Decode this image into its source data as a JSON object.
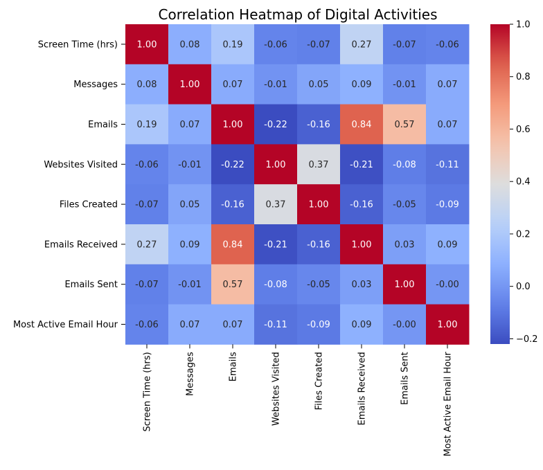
{
  "chart_data": {
    "type": "heatmap",
    "title": "Correlation Heatmap of Digital Activities",
    "x_labels": [
      "Screen Time (hrs)",
      "Messages",
      "Emails",
      "Websites Visited",
      "Files Created",
      "Emails Received",
      "Emails Sent",
      "Most Active Email Hour"
    ],
    "y_labels": [
      "Screen Time (hrs)",
      "Messages",
      "Emails",
      "Websites Visited",
      "Files Created",
      "Emails Received",
      "Emails Sent",
      "Most Active Email Hour"
    ],
    "values": [
      [
        1.0,
        0.08,
        0.19,
        -0.06,
        -0.07,
        0.27,
        -0.07,
        -0.06
      ],
      [
        0.08,
        1.0,
        0.07,
        -0.01,
        0.05,
        0.09,
        -0.01,
        0.07
      ],
      [
        0.19,
        0.07,
        1.0,
        -0.22,
        -0.16,
        0.84,
        0.57,
        0.07
      ],
      [
        -0.06,
        -0.01,
        -0.22,
        1.0,
        0.37,
        -0.21,
        -0.08,
        -0.11
      ],
      [
        -0.07,
        0.05,
        -0.16,
        0.37,
        1.0,
        -0.16,
        -0.05,
        -0.09
      ],
      [
        0.27,
        0.09,
        0.84,
        -0.21,
        -0.16,
        1.0,
        0.03,
        0.09
      ],
      [
        -0.07,
        -0.01,
        0.57,
        -0.08,
        -0.05,
        0.03,
        1.0,
        -0.0
      ],
      [
        -0.06,
        0.07,
        0.07,
        -0.11,
        -0.09,
        0.09,
        -0.0,
        1.0
      ]
    ],
    "value_format": "0.00",
    "colormap": "coolwarm",
    "vmin": -0.22,
    "vmax": 1.0,
    "colorbar": {
      "ticks": [
        -0.2,
        0.0,
        0.2,
        0.4,
        0.6,
        0.8,
        1.0
      ],
      "tick_labels": [
        "−0.2",
        "0.0",
        "0.2",
        "0.4",
        "0.6",
        "0.8",
        "1.0"
      ]
    },
    "legend": "colorbar-right",
    "grid": false
  }
}
